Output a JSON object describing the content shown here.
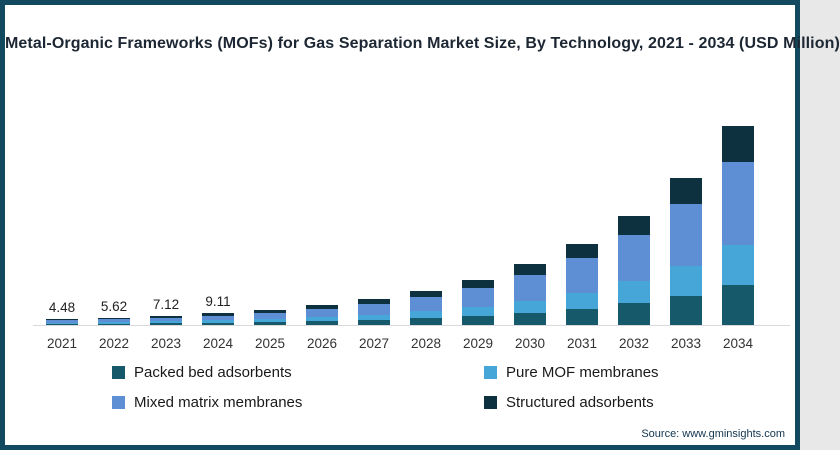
{
  "header": {
    "title": "Metal-Organic Frameworks (MOFs) for Gas Separation Market Size, By Technology, 2021 - 2034 (USD Million)"
  },
  "footer": {
    "source": "Source: www.gminsights.com"
  },
  "frame": {
    "border_color": "#114a5f",
    "background": "#ffffff"
  },
  "chart_data": {
    "type": "bar",
    "stacked": true,
    "title": "Metal-Organic Frameworks (MOFs) for Gas Separation Market Size, By Technology, 2021 - 2034 (USD Million)",
    "unit": "USD Million",
    "grid": false,
    "legend_position": "bottom",
    "axis_baseline_color": "#d9d9d9",
    "categories": [
      "2021",
      "2022",
      "2023",
      "2024",
      "2025",
      "2026",
      "2027",
      "2028",
      "2029",
      "2030",
      "2031",
      "2032",
      "2033",
      "2034"
    ],
    "series": [
      {
        "name": "Packed bed adsorbents",
        "color": "#16596b",
        "values": [
          0.9,
          1.12,
          1.42,
          1.82,
          2.36,
          3.08,
          4.06,
          5.38,
          7.16,
          9.56,
          12.8,
          17.2,
          23.2,
          31.4
        ]
      },
      {
        "name": "Pure MOF membranes",
        "color": "#47a6d8",
        "values": [
          0.89,
          1.13,
          1.43,
          1.82,
          2.36,
          3.08,
          4.06,
          5.38,
          7.16,
          9.56,
          12.8,
          17.2,
          23.2,
          31.4
        ]
      },
      {
        "name": "Mixed matrix membranes",
        "color": "#5e8fd4",
        "values": [
          1.88,
          2.36,
          2.99,
          3.83,
          4.96,
          6.47,
          8.53,
          11.3,
          15.04,
          20.08,
          26.88,
          36.12,
          48.72,
          65.94
        ]
      },
      {
        "name": "Structured adsorbents",
        "color": "#0e3140",
        "values": [
          0.81,
          1.01,
          1.28,
          1.64,
          2.12,
          2.77,
          3.65,
          4.84,
          6.44,
          8.6,
          11.52,
          15.48,
          20.88,
          28.26
        ]
      }
    ],
    "totals": [
      4.48,
      5.62,
      7.12,
      9.11,
      11.8,
      15.4,
      20.3,
      26.9,
      35.8,
      47.8,
      64.0,
      86.0,
      116.0,
      157.0
    ],
    "data_labels": [
      "4.48",
      "5.62",
      "7.12",
      "9.11",
      "",
      "",
      "",
      "",
      "",
      "",
      "",
      "",
      "",
      ""
    ]
  }
}
